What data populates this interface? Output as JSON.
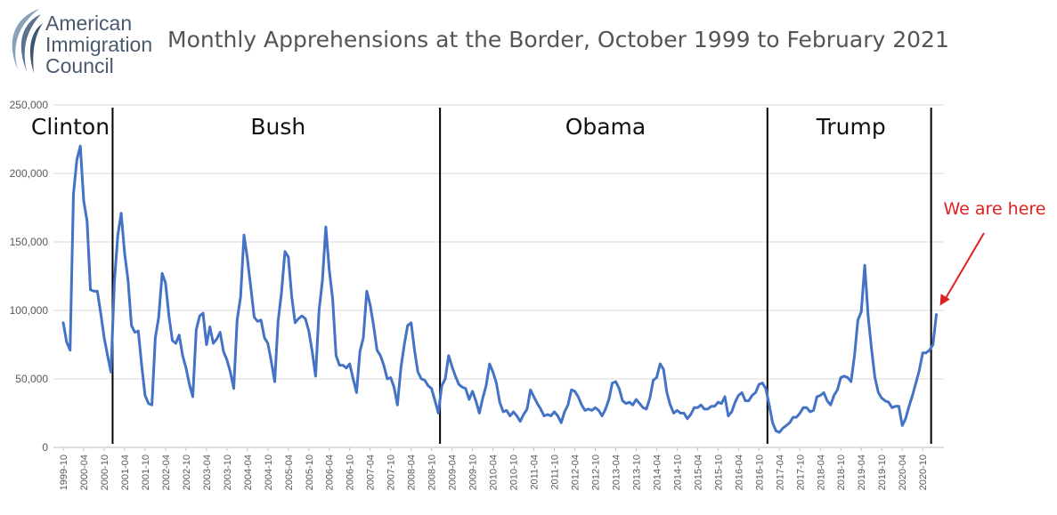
{
  "logo": {
    "lines": [
      "American",
      "Immigration",
      "Council"
    ]
  },
  "chart_data": {
    "type": "line",
    "title": "Monthly Apprehensions at the Border, October 1999 to February 2021",
    "xlabel": "",
    "ylabel": "",
    "ylim": [
      0,
      250000
    ],
    "y_ticks": [
      "0",
      "50,000",
      "100,000",
      "150,000",
      "200,000",
      "250,000"
    ],
    "grid": true,
    "legend": "none",
    "line_color": "#4472c4",
    "x_start": "1999-10",
    "x_end": "2021-02",
    "x_tick_labels": [
      "1999-10",
      "2000-04",
      "2000-10",
      "2001-04",
      "2001-10",
      "2002-04",
      "2002-10",
      "2003-04",
      "2003-10",
      "2004-04",
      "2004-10",
      "2005-04",
      "2005-10",
      "2006-04",
      "2006-10",
      "2007-04",
      "2007-10",
      "2008-04",
      "2008-10",
      "2009-04",
      "2009-10",
      "2010-04",
      "2010-10",
      "2011-04",
      "2011-10",
      "2012-04",
      "2012-10",
      "2013-04",
      "2013-10",
      "2014-04",
      "2014-10",
      "2015-04",
      "2015-10",
      "2016-04",
      "2016-10",
      "2017-04",
      "2017-10",
      "2018-04",
      "2018-10",
      "2019-04",
      "2019-10",
      "2020-04",
      "2020-10"
    ],
    "series": [
      {
        "points": [
          [
            "1999-10",
            91000
          ],
          [
            "1999-11",
            77000
          ],
          [
            "1999-12",
            71000
          ],
          [
            "2000-01",
            185000
          ],
          [
            "2000-02",
            210000
          ],
          [
            "2000-03",
            220000
          ],
          [
            "2000-04",
            180000
          ],
          [
            "2000-05",
            165000
          ],
          [
            "2000-06",
            115000
          ],
          [
            "2000-07",
            114000
          ],
          [
            "2000-08",
            114000
          ],
          [
            "2000-09",
            98000
          ],
          [
            "2000-10",
            80000
          ],
          [
            "2000-11",
            67000
          ],
          [
            "2000-12",
            55000
          ],
          [
            "2001-01",
            120000
          ],
          [
            "2001-02",
            155000
          ],
          [
            "2001-03",
            171000
          ],
          [
            "2001-04",
            142000
          ],
          [
            "2001-05",
            122000
          ],
          [
            "2001-06",
            89000
          ],
          [
            "2001-07",
            84000
          ],
          [
            "2001-08",
            85000
          ],
          [
            "2001-09",
            60000
          ],
          [
            "2001-10",
            38000
          ],
          [
            "2001-11",
            32000
          ],
          [
            "2001-12",
            31000
          ],
          [
            "2002-01",
            80000
          ],
          [
            "2002-02",
            95000
          ],
          [
            "2002-03",
            127000
          ],
          [
            "2002-04",
            120000
          ],
          [
            "2002-05",
            96000
          ],
          [
            "2002-06",
            78000
          ],
          [
            "2002-07",
            76000
          ],
          [
            "2002-08",
            82000
          ],
          [
            "2002-09",
            67000
          ],
          [
            "2002-10",
            58000
          ],
          [
            "2002-11",
            46000
          ],
          [
            "2002-12",
            37000
          ],
          [
            "2003-01",
            86000
          ],
          [
            "2003-02",
            96000
          ],
          [
            "2003-03",
            98000
          ],
          [
            "2003-04",
            75000
          ],
          [
            "2003-05",
            88000
          ],
          [
            "2003-06",
            76000
          ],
          [
            "2003-07",
            79000
          ],
          [
            "2003-08",
            84000
          ],
          [
            "2003-09",
            70000
          ],
          [
            "2003-10",
            64000
          ],
          [
            "2003-11",
            55000
          ],
          [
            "2003-12",
            43000
          ],
          [
            "2004-01",
            93000
          ],
          [
            "2004-02",
            110000
          ],
          [
            "2004-03",
            155000
          ],
          [
            "2004-04",
            138000
          ],
          [
            "2004-05",
            117000
          ],
          [
            "2004-06",
            95000
          ],
          [
            "2004-07",
            92000
          ],
          [
            "2004-08",
            93000
          ],
          [
            "2004-09",
            80000
          ],
          [
            "2004-10",
            76000
          ],
          [
            "2004-11",
            63000
          ],
          [
            "2004-12",
            48000
          ],
          [
            "2005-01",
            92000
          ],
          [
            "2005-02",
            113000
          ],
          [
            "2005-03",
            143000
          ],
          [
            "2005-04",
            139000
          ],
          [
            "2005-05",
            110000
          ],
          [
            "2005-06",
            91000
          ],
          [
            "2005-07",
            94000
          ],
          [
            "2005-08",
            96000
          ],
          [
            "2005-09",
            94000
          ],
          [
            "2005-10",
            85000
          ],
          [
            "2005-11",
            70000
          ],
          [
            "2005-12",
            52000
          ],
          [
            "2006-01",
            100000
          ],
          [
            "2006-02",
            122000
          ],
          [
            "2006-03",
            161000
          ],
          [
            "2006-04",
            130000
          ],
          [
            "2006-05",
            108000
          ],
          [
            "2006-06",
            67000
          ],
          [
            "2006-07",
            60000
          ],
          [
            "2006-08",
            60000
          ],
          [
            "2006-09",
            58000
          ],
          [
            "2006-10",
            61000
          ],
          [
            "2006-11",
            50000
          ],
          [
            "2006-12",
            40000
          ],
          [
            "2007-01",
            70000
          ],
          [
            "2007-02",
            80000
          ],
          [
            "2007-03",
            114000
          ],
          [
            "2007-04",
            104000
          ],
          [
            "2007-05",
            89000
          ],
          [
            "2007-06",
            71000
          ],
          [
            "2007-07",
            67000
          ],
          [
            "2007-08",
            60000
          ],
          [
            "2007-09",
            50000
          ],
          [
            "2007-10",
            51000
          ],
          [
            "2007-11",
            44000
          ],
          [
            "2007-12",
            31000
          ],
          [
            "2008-01",
            58000
          ],
          [
            "2008-02",
            75000
          ],
          [
            "2008-03",
            89000
          ],
          [
            "2008-04",
            91000
          ],
          [
            "2008-05",
            71000
          ],
          [
            "2008-06",
            55000
          ],
          [
            "2008-07",
            50000
          ],
          [
            "2008-08",
            49000
          ],
          [
            "2008-09",
            45000
          ],
          [
            "2008-10",
            43000
          ],
          [
            "2008-11",
            34000
          ],
          [
            "2008-12",
            25000
          ],
          [
            "2009-01",
            45000
          ],
          [
            "2009-02",
            50000
          ],
          [
            "2009-03",
            67000
          ],
          [
            "2009-04",
            59000
          ],
          [
            "2009-05",
            52000
          ],
          [
            "2009-06",
            46000
          ],
          [
            "2009-07",
            44000
          ],
          [
            "2009-08",
            43000
          ],
          [
            "2009-09",
            35000
          ],
          [
            "2009-10",
            41000
          ],
          [
            "2009-11",
            34000
          ],
          [
            "2009-12",
            25000
          ],
          [
            "2010-01",
            36000
          ],
          [
            "2010-02",
            45000
          ],
          [
            "2010-03",
            61000
          ],
          [
            "2010-04",
            55000
          ],
          [
            "2010-05",
            47000
          ],
          [
            "2010-06",
            33000
          ],
          [
            "2010-07",
            26000
          ],
          [
            "2010-08",
            27000
          ],
          [
            "2010-09",
            23000
          ],
          [
            "2010-10",
            26000
          ],
          [
            "2010-11",
            23000
          ],
          [
            "2010-12",
            19000
          ],
          [
            "2011-01",
            24000
          ],
          [
            "2011-02",
            28000
          ],
          [
            "2011-03",
            42000
          ],
          [
            "2011-04",
            37000
          ],
          [
            "2011-05",
            32000
          ],
          [
            "2011-06",
            28000
          ],
          [
            "2011-07",
            23000
          ],
          [
            "2011-08",
            24000
          ],
          [
            "2011-09",
            23000
          ],
          [
            "2011-10",
            26000
          ],
          [
            "2011-11",
            23000
          ],
          [
            "2011-12",
            18000
          ],
          [
            "2012-01",
            26000
          ],
          [
            "2012-02",
            31000
          ],
          [
            "2012-03",
            42000
          ],
          [
            "2012-04",
            41000
          ],
          [
            "2012-05",
            37000
          ],
          [
            "2012-06",
            31000
          ],
          [
            "2012-07",
            27000
          ],
          [
            "2012-08",
            28000
          ],
          [
            "2012-09",
            27000
          ],
          [
            "2012-10",
            29000
          ],
          [
            "2012-11",
            27000
          ],
          [
            "2012-12",
            23000
          ],
          [
            "2013-01",
            28000
          ],
          [
            "2013-02",
            35000
          ],
          [
            "2013-03",
            47000
          ],
          [
            "2013-04",
            48000
          ],
          [
            "2013-05",
            43000
          ],
          [
            "2013-06",
            34000
          ],
          [
            "2013-07",
            32000
          ],
          [
            "2013-08",
            33000
          ],
          [
            "2013-09",
            31000
          ],
          [
            "2013-10",
            35000
          ],
          [
            "2013-11",
            32000
          ],
          [
            "2013-12",
            29000
          ],
          [
            "2014-01",
            28000
          ],
          [
            "2014-02",
            36000
          ],
          [
            "2014-03",
            49000
          ],
          [
            "2014-04",
            51000
          ],
          [
            "2014-05",
            61000
          ],
          [
            "2014-06",
            57000
          ],
          [
            "2014-07",
            40000
          ],
          [
            "2014-08",
            31000
          ],
          [
            "2014-09",
            25000
          ],
          [
            "2014-10",
            27000
          ],
          [
            "2014-11",
            25000
          ],
          [
            "2014-12",
            25000
          ],
          [
            "2015-01",
            21000
          ],
          [
            "2015-02",
            24000
          ],
          [
            "2015-03",
            29000
          ],
          [
            "2015-04",
            29000
          ],
          [
            "2015-05",
            31000
          ],
          [
            "2015-06",
            28000
          ],
          [
            "2015-07",
            28000
          ],
          [
            "2015-08",
            30000
          ],
          [
            "2015-09",
            30000
          ],
          [
            "2015-10",
            33000
          ],
          [
            "2015-11",
            32000
          ],
          [
            "2015-12",
            37000
          ],
          [
            "2016-01",
            23000
          ],
          [
            "2016-02",
            26000
          ],
          [
            "2016-03",
            33000
          ],
          [
            "2016-04",
            38000
          ],
          [
            "2016-05",
            40000
          ],
          [
            "2016-06",
            34000
          ],
          [
            "2016-07",
            34000
          ],
          [
            "2016-08",
            38000
          ],
          [
            "2016-09",
            40000
          ],
          [
            "2016-10",
            46000
          ],
          [
            "2016-11",
            47000
          ],
          [
            "2016-12",
            43000
          ],
          [
            "2017-01",
            31000
          ],
          [
            "2017-02",
            18000
          ],
          [
            "2017-03",
            12000
          ],
          [
            "2017-04",
            11000
          ],
          [
            "2017-05",
            14000
          ],
          [
            "2017-06",
            16000
          ],
          [
            "2017-07",
            18000
          ],
          [
            "2017-08",
            22000
          ],
          [
            "2017-09",
            22000
          ],
          [
            "2017-10",
            25000
          ],
          [
            "2017-11",
            29000
          ],
          [
            "2017-12",
            29000
          ],
          [
            "2018-01",
            26000
          ],
          [
            "2018-02",
            27000
          ],
          [
            "2018-03",
            37000
          ],
          [
            "2018-04",
            38000
          ],
          [
            "2018-05",
            40000
          ],
          [
            "2018-06",
            34000
          ],
          [
            "2018-07",
            31000
          ],
          [
            "2018-08",
            38000
          ],
          [
            "2018-09",
            42000
          ],
          [
            "2018-10",
            51000
          ],
          [
            "2018-11",
            52000
          ],
          [
            "2018-12",
            51000
          ],
          [
            "2019-01",
            48000
          ],
          [
            "2019-02",
            67000
          ],
          [
            "2019-03",
            93000
          ],
          [
            "2019-04",
            99000
          ],
          [
            "2019-05",
            133000
          ],
          [
            "2019-06",
            96000
          ],
          [
            "2019-07",
            72000
          ],
          [
            "2019-08",
            51000
          ],
          [
            "2019-09",
            40000
          ],
          [
            "2019-10",
            36000
          ],
          [
            "2019-11",
            34000
          ],
          [
            "2019-12",
            33000
          ],
          [
            "2020-01",
            29000
          ],
          [
            "2020-02",
            30000
          ],
          [
            "2020-03",
            30000
          ],
          [
            "2020-04",
            16000
          ],
          [
            "2020-05",
            21000
          ],
          [
            "2020-06",
            30000
          ],
          [
            "2020-07",
            38000
          ],
          [
            "2020-08",
            47000
          ],
          [
            "2020-09",
            56000
          ],
          [
            "2020-10",
            69000
          ],
          [
            "2020-11",
            69000
          ],
          [
            "2020-12",
            71000
          ],
          [
            "2021-01",
            75000
          ],
          [
            "2021-02",
            97000
          ]
        ]
      }
    ],
    "eras": [
      {
        "label": "Clinton",
        "divider_after": null
      },
      {
        "label": "Bush",
        "start": "2001-01"
      },
      {
        "label": "Obama",
        "start": "2009-01"
      },
      {
        "label": "Trump",
        "start": "2017-01"
      }
    ],
    "dividers": [
      "2001-01",
      "2009-01",
      "2017-01",
      "2021-01"
    ],
    "annotation": {
      "text": "We are here",
      "color": "#e02020",
      "target": "2021-02"
    }
  }
}
